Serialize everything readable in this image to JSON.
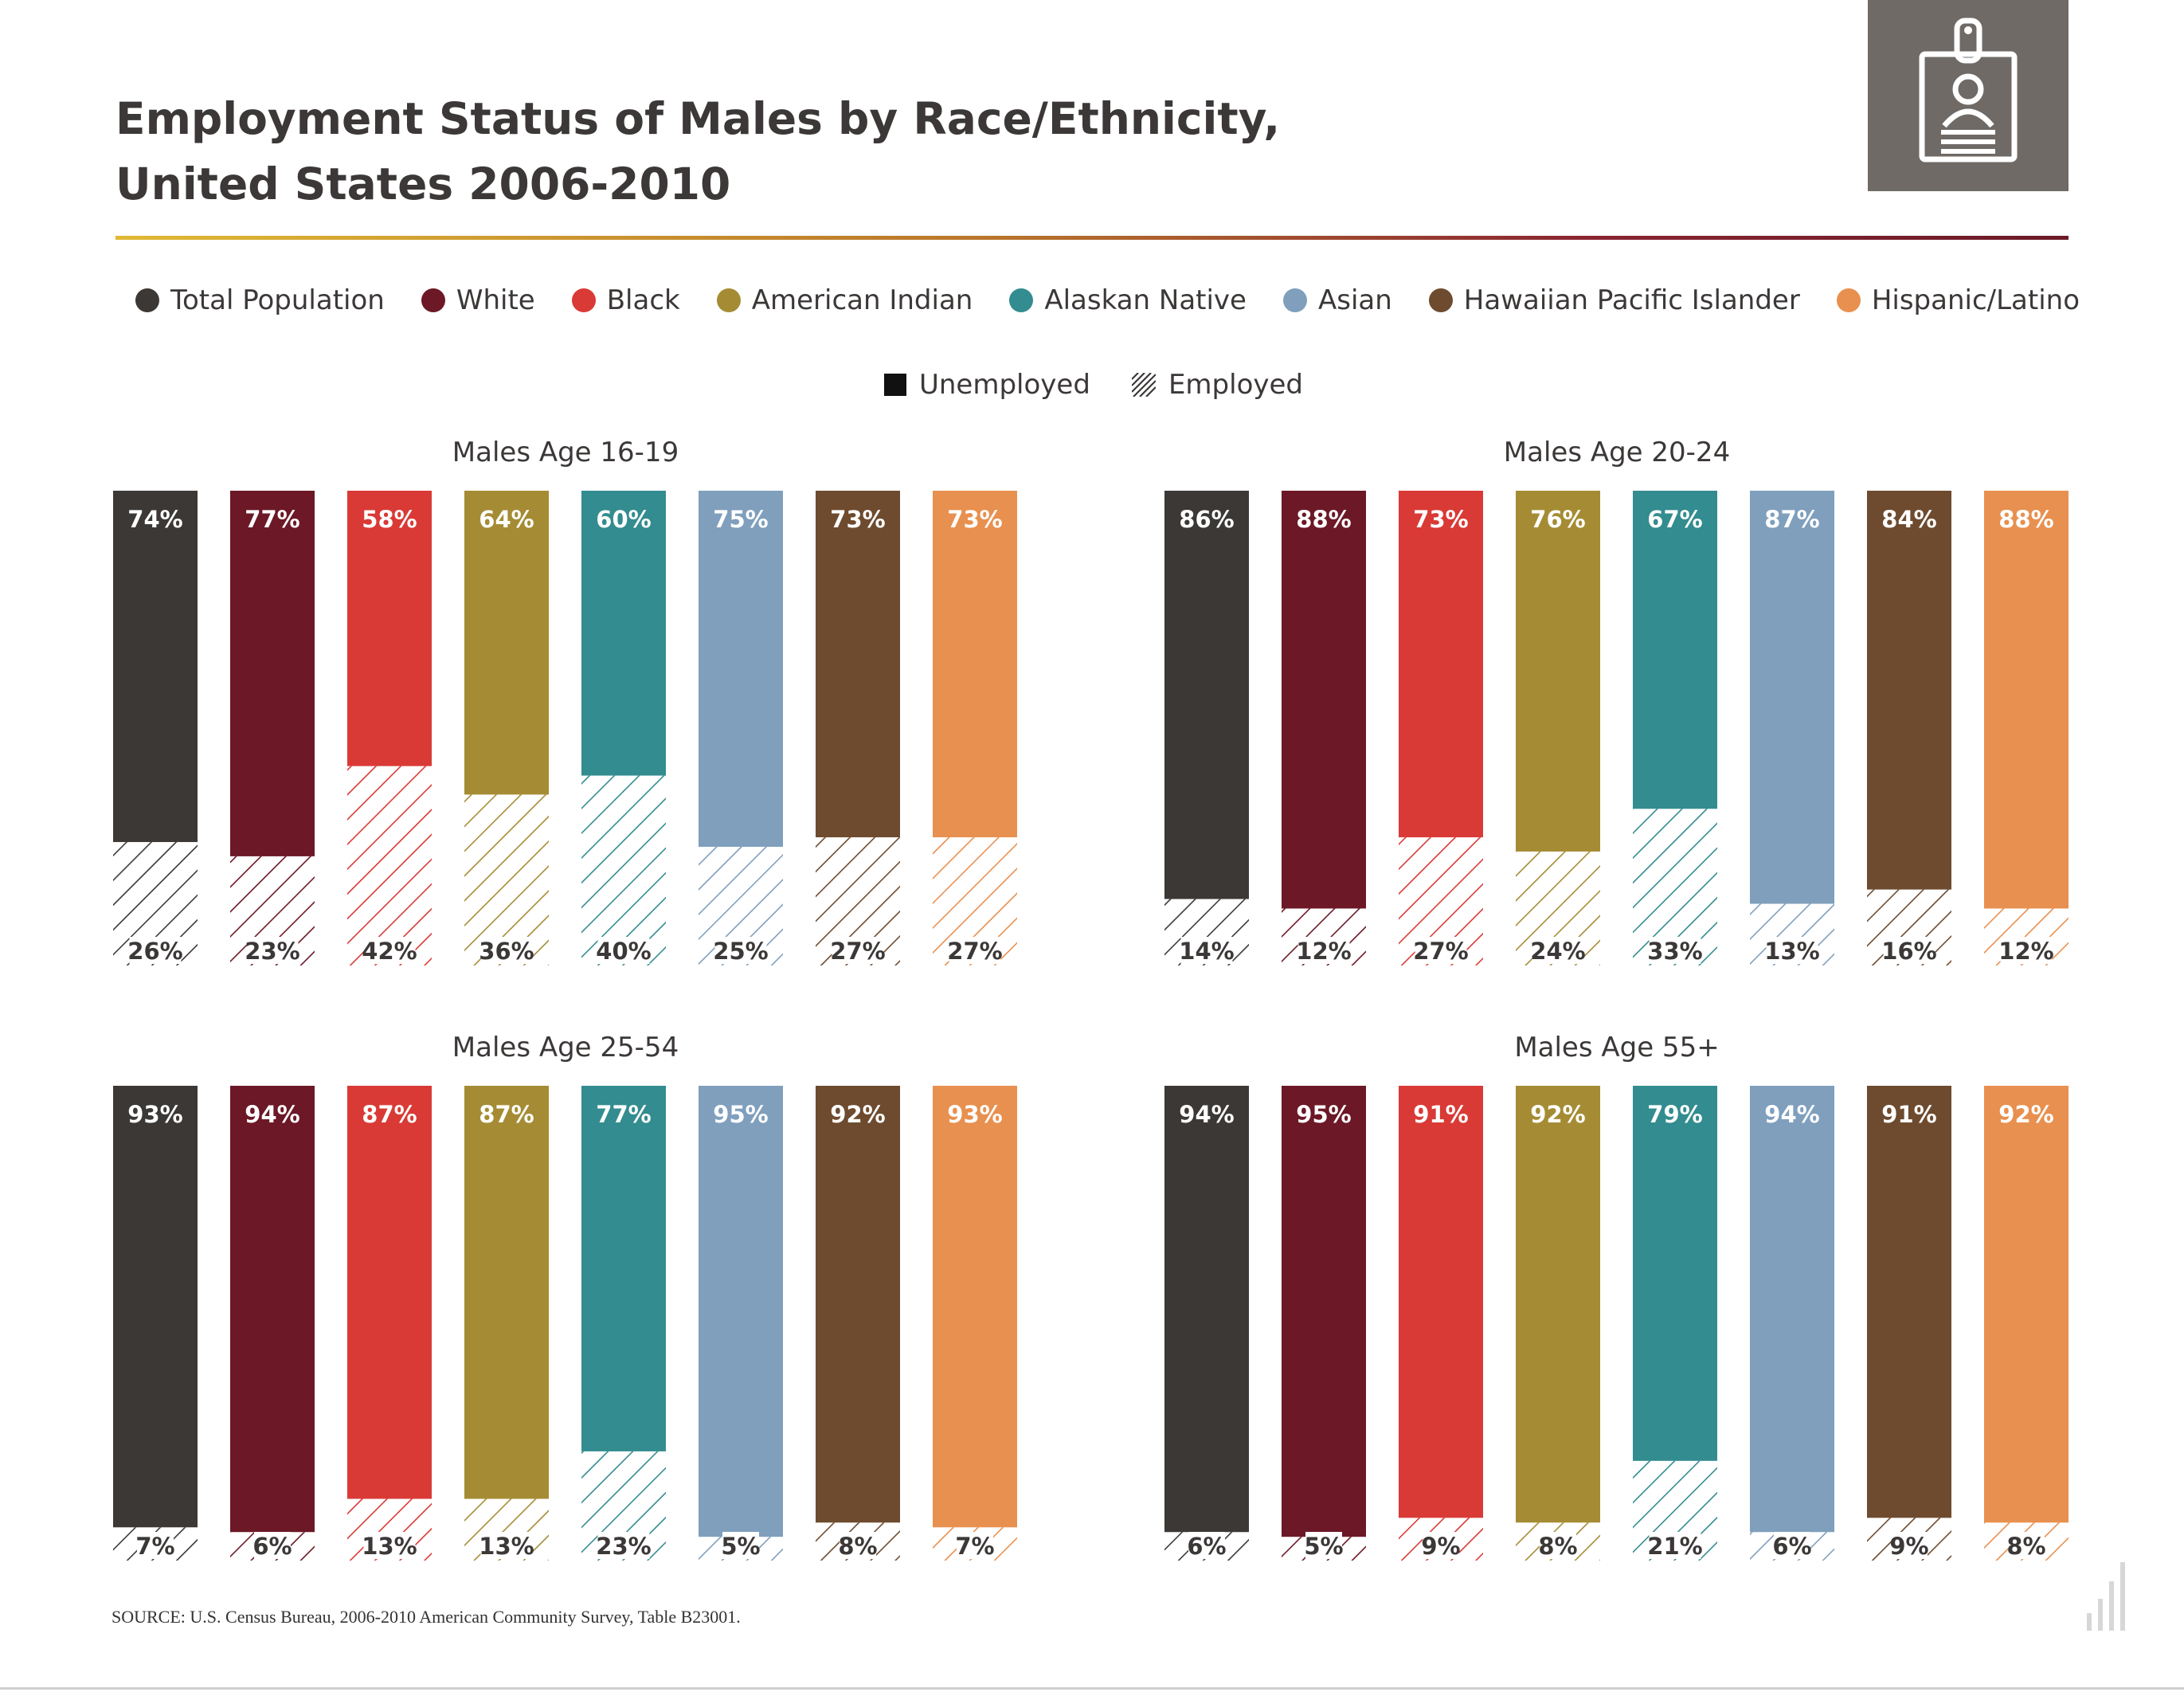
{
  "title_line1": "Employment Status of Males by Race/Ethnicity,",
  "title_line2": "United States  2006-2010",
  "legend": [
    {
      "label": "Total Population",
      "color": "#3c3836"
    },
    {
      "label": "White",
      "color": "#6c1826"
    },
    {
      "label": "Black",
      "color": "#d93a36"
    },
    {
      "label": "American Indian",
      "color": "#a58c34"
    },
    {
      "label": "Alaskan Native",
      "color": "#338c8f"
    },
    {
      "label": "Asian",
      "color": "#7f9fbd"
    },
    {
      "label": "Hawaiian Pacific Islander",
      "color": "#6e4b2f"
    },
    {
      "label": "Hispanic/Latino",
      "color": "#e8904f"
    }
  ],
  "status_legend": {
    "unemployed": "Unemployed",
    "employed": "Employed"
  },
  "source": "SOURCE: U.S. Census Bureau, 2006-2010 American Community Survey, Table B23001.",
  "chart_data": [
    {
      "type": "bar",
      "stacked": true,
      "title": "Males Age 16-19",
      "categories": [
        "Total Population",
        "White",
        "Black",
        "American Indian",
        "Alaskan Native",
        "Asian",
        "Hawaiian Pacific Islander",
        "Hispanic/Latino"
      ],
      "series": [
        {
          "name": "Unemployed",
          "values": [
            74,
            77,
            58,
            64,
            60,
            75,
            73,
            73
          ]
        },
        {
          "name": "Employed",
          "values": [
            26,
            23,
            42,
            36,
            40,
            25,
            27,
            27
          ]
        }
      ],
      "ylim": [
        0,
        100
      ]
    },
    {
      "type": "bar",
      "stacked": true,
      "title": "Males Age 20-24",
      "categories": [
        "Total Population",
        "White",
        "Black",
        "American Indian",
        "Alaskan Native",
        "Asian",
        "Hawaiian Pacific Islander",
        "Hispanic/Latino"
      ],
      "series": [
        {
          "name": "Unemployed",
          "values": [
            86,
            88,
            73,
            76,
            67,
            87,
            84,
            88
          ]
        },
        {
          "name": "Employed",
          "values": [
            14,
            12,
            27,
            24,
            33,
            13,
            16,
            12
          ]
        }
      ],
      "ylim": [
        0,
        100
      ]
    },
    {
      "type": "bar",
      "stacked": true,
      "title": "Males Age 25-54",
      "categories": [
        "Total Population",
        "White",
        "Black",
        "American Indian",
        "Alaskan Native",
        "Asian",
        "Hawaiian Pacific Islander",
        "Hispanic/Latino"
      ],
      "series": [
        {
          "name": "Unemployed",
          "values": [
            93,
            94,
            87,
            87,
            77,
            95,
            92,
            93
          ]
        },
        {
          "name": "Employed",
          "values": [
            7,
            6,
            13,
            13,
            23,
            5,
            8,
            7
          ]
        }
      ],
      "ylim": [
        0,
        100
      ]
    },
    {
      "type": "bar",
      "stacked": true,
      "title": "Males Age 55+",
      "categories": [
        "Total Population",
        "White",
        "Black",
        "American Indian",
        "Alaskan Native",
        "Asian",
        "Hawaiian Pacific Islander",
        "Hispanic/Latino"
      ],
      "series": [
        {
          "name": "Unemployed",
          "values": [
            94,
            95,
            91,
            92,
            79,
            94,
            91,
            92
          ]
        },
        {
          "name": "Employed",
          "values": [
            6,
            5,
            9,
            8,
            21,
            6,
            9,
            8
          ]
        }
      ],
      "ylim": [
        0,
        100
      ]
    }
  ]
}
